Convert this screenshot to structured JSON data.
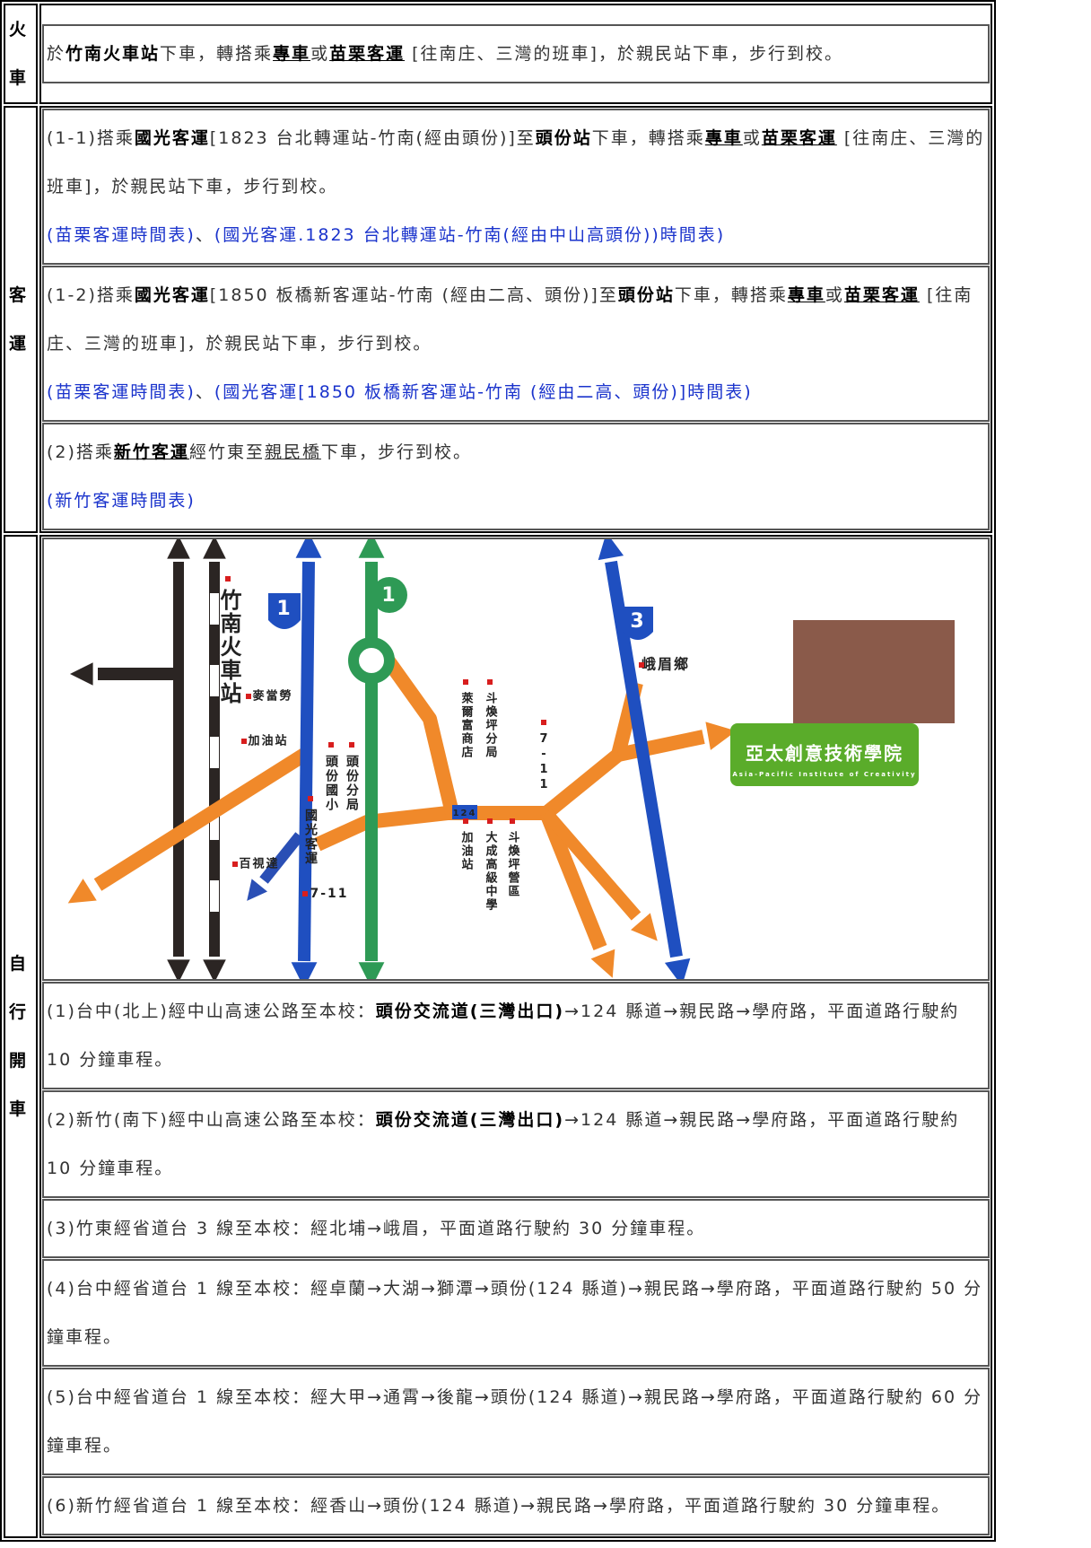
{
  "rows": [
    {
      "label": "火車",
      "items": [
        {
          "paragraphs": [
            [
              "於",
              {
                "text": "竹南火車站",
                "style": "b"
              },
              "下車，轉搭乘",
              {
                "text": "專車",
                "style": "bu"
              },
              "或",
              {
                "text": "苗栗客運",
                "style": "bu"
              },
              " [往南庄、三灣的班車]，於親民站下車，步行到校。"
            ]
          ]
        }
      ]
    },
    {
      "label": "客運",
      "items": [
        {
          "paragraphs": [
            [
              "(1-1)搭乘",
              {
                "text": "國光客運",
                "style": "b"
              },
              "[1823 台北轉運站-竹南(經由頭份)]至",
              {
                "text": "頭份站",
                "style": "b"
              },
              "下車，轉搭乘",
              {
                "text": "專車",
                "style": "bu"
              },
              "或",
              {
                "text": "苗栗客運",
                "style": "bu"
              },
              " [往南庄、三灣的班車]，於親民站下車，步行到校。"
            ],
            [
              {
                "text": "(苗栗客運時間表)",
                "style": "link"
              },
              "、",
              {
                "text": "(國光客運.1823 台北轉運站-竹南(經由中山高頭份))時間表)",
                "style": "link"
              }
            ]
          ]
        },
        {
          "paragraphs": [
            [
              "(1-2)搭乘",
              {
                "text": "國光客運",
                "style": "b"
              },
              "[1850 板橋新客運站-竹南 (經由二高、頭份)]至",
              {
                "text": "頭份站",
                "style": "b"
              },
              "下車，轉搭乘",
              {
                "text": "專車",
                "style": "bu"
              },
              "或",
              {
                "text": "苗栗客運",
                "style": "bu"
              },
              " [往南庄、三灣的班車]，於親民站下車，步行到校。"
            ],
            [
              {
                "text": "(苗栗客運時間表)",
                "style": "link"
              },
              "、",
              {
                "text": "(國光客運[1850 板橋新客運站-竹南 (經由二高、頭份)]時間表)",
                "style": "link"
              }
            ]
          ]
        },
        {
          "paragraphs": [
            [
              "(2)搭乘",
              {
                "text": "新竹客運",
                "style": "bu"
              },
              "經竹東至",
              {
                "text": "親民橋",
                "style": "u"
              },
              "下車，步行到校。"
            ],
            [
              {
                "text": "(新竹客運時間表)",
                "style": "link"
              }
            ]
          ]
        }
      ]
    },
    {
      "label": "自行開車",
      "items": [
        {
          "map": {
            "labels": [
              "竹南火車站",
              "麥當勞",
              "加油站",
              "頭份國小",
              "頭份分局",
              "國光客運",
              "百視達",
              "7-11",
              "峨眉鄉",
              "萊爾富商店",
              "斗煥坪分局",
              "7-11",
              "124",
              "加油站",
              "大成高級中學",
              "斗煥坪營區",
              "亞太創意技術學院",
              "Asia-Pacific Institute of Creativity",
              "1",
              "1",
              "3"
            ]
          }
        },
        {
          "paragraphs": [
            [
              "(1)台中(北上)經中山高速公路至本校：",
              {
                "text": "頭份交流道(三灣出口)",
                "style": "b"
              },
              "→124 縣道→親民路→學府路，平面道路行駛約 10 分鐘車程。"
            ]
          ]
        },
        {
          "paragraphs": [
            [
              "(2)新竹(南下)經中山高速公路至本校：",
              {
                "text": "頭份交流道(三灣出口)",
                "style": "b"
              },
              "→124 縣道→親民路→學府路，平面道路行駛約 10 分鐘車程。"
            ]
          ]
        },
        {
          "paragraphs": [
            [
              "(3)竹東經省道台 3 線至本校：經北埔→峨眉，平面道路行駛約 30 分鐘車程。"
            ]
          ]
        },
        {
          "paragraphs": [
            [
              "(4)台中經省道台 1 線至本校：經卓蘭→大湖→獅潭→頭份(124 縣道)→親民路→學府路，平面道路行駛約 50 分鐘車程。"
            ]
          ]
        },
        {
          "paragraphs": [
            [
              "(5)台中經省道台 1 線至本校：經大甲→通霄→後龍→頭份(124 縣道)→親民路→學府路，平面道路行駛約 60 分鐘車程。"
            ]
          ]
        },
        {
          "paragraphs": [
            [
              "(6)新竹經省道台 1 線至本校：經香山→頭份(124 縣道)→親民路→學府路，平面道路行駛約 30 分鐘車程。"
            ]
          ]
        }
      ]
    }
  ]
}
